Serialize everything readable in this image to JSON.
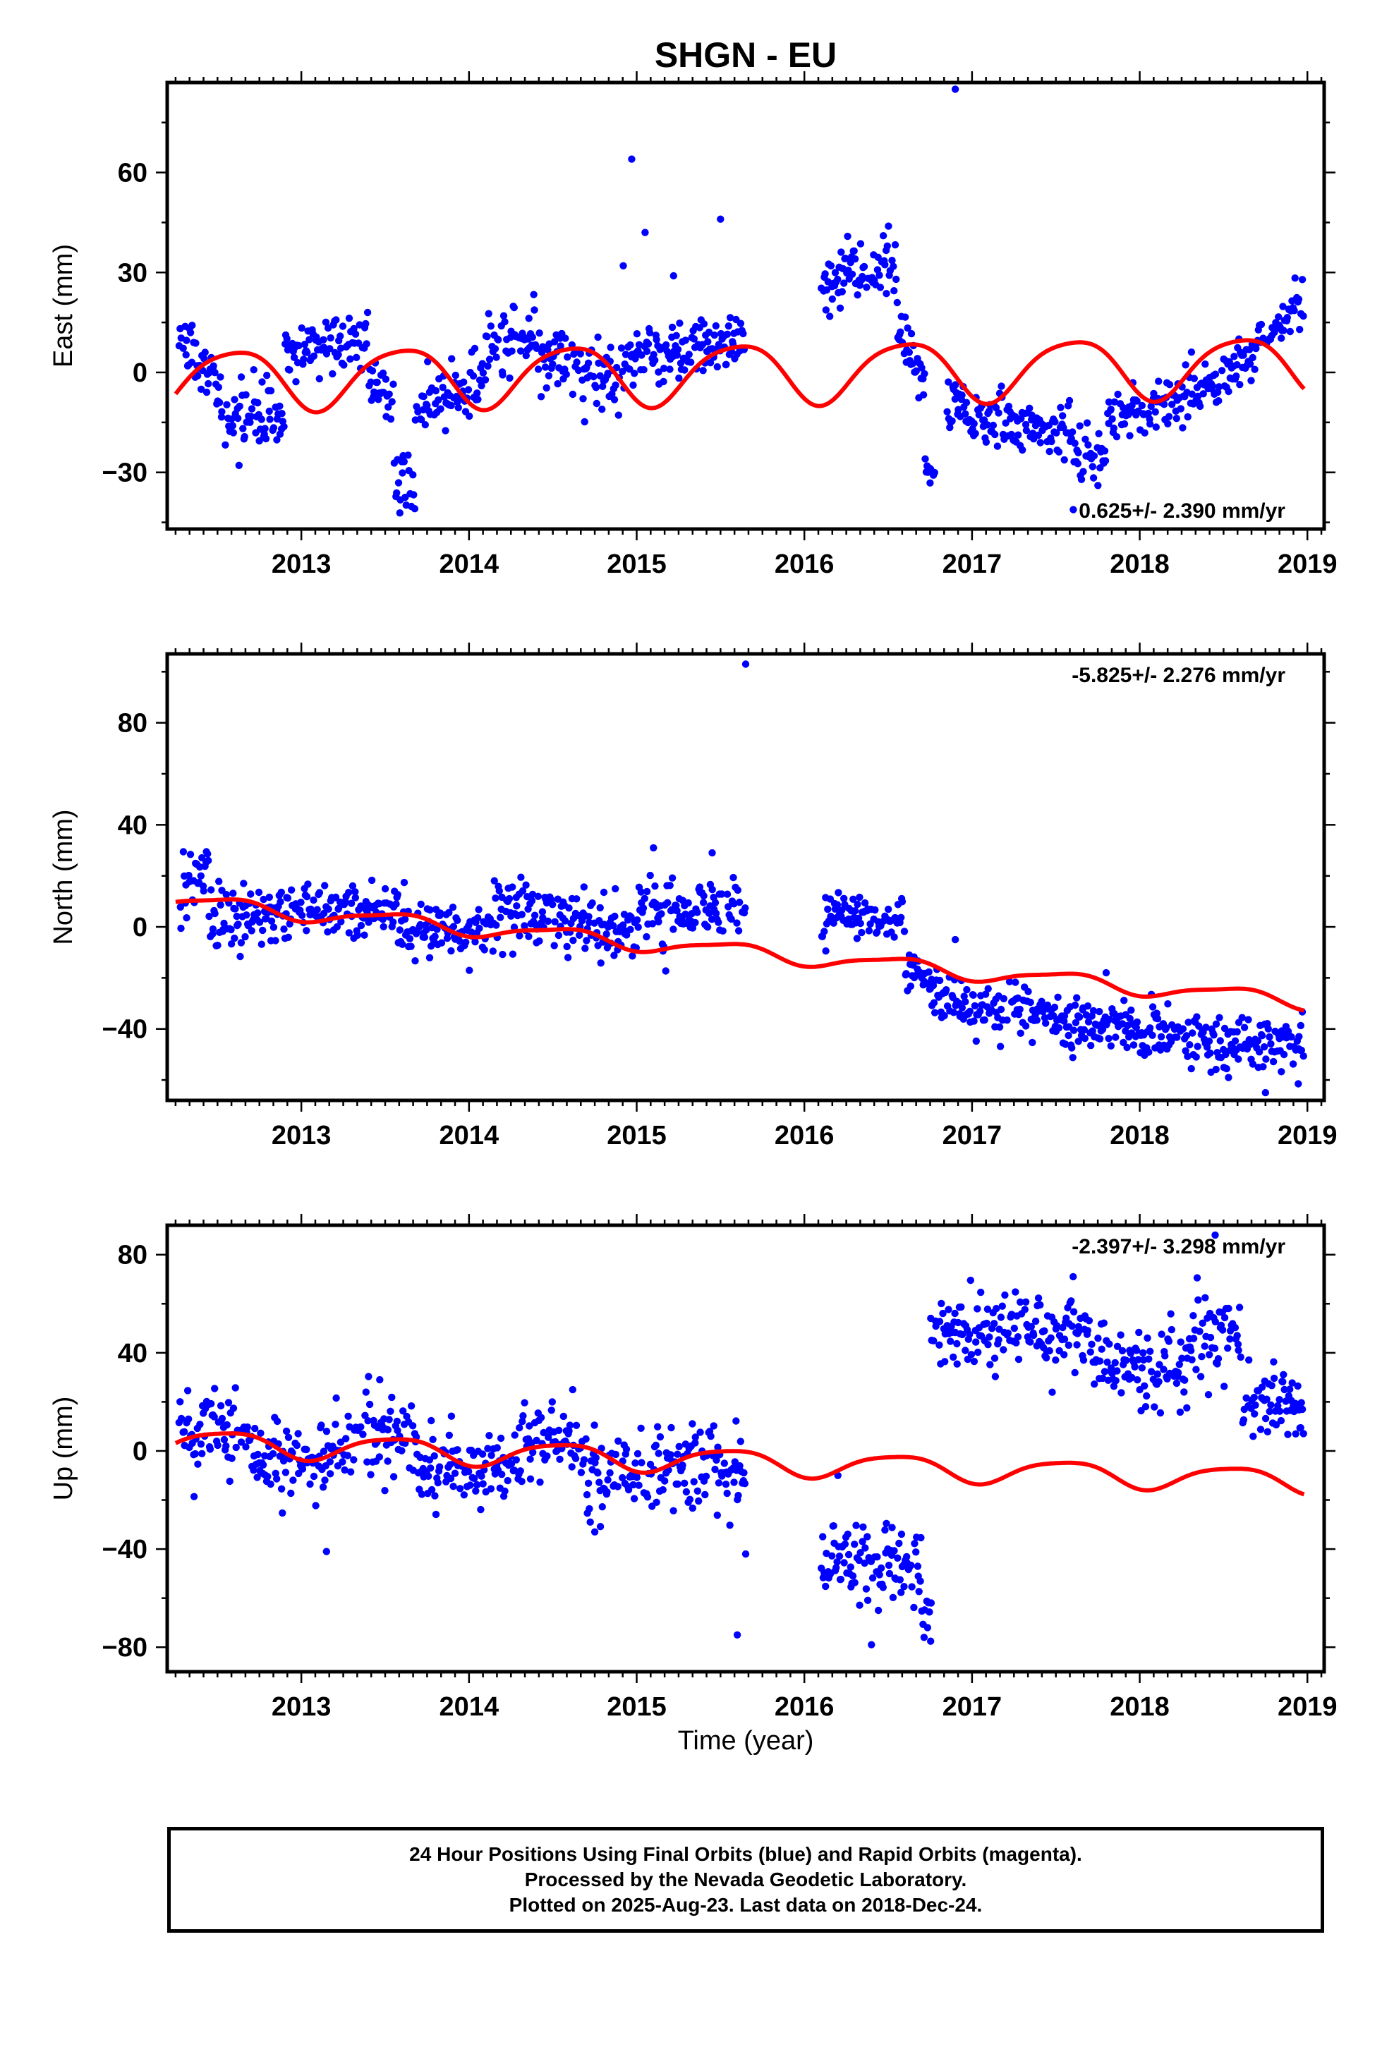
{
  "title": "SHGN - EU",
  "x_axis_label": "Time (year)",
  "colors": {
    "final_orbit": "#0000ff",
    "model_fit": "#ff0000",
    "frame": "#000000"
  },
  "chart_data": [
    {
      "type": "scatter",
      "component": "East",
      "ylabel": "East (mm)",
      "ylim": [
        -47,
        87
      ],
      "yticks": [
        -30,
        0,
        30,
        60
      ],
      "xlim": [
        2012.2,
        2019.1
      ],
      "xticks": [
        2013,
        2014,
        2015,
        2016,
        2017,
        2018,
        2019
      ],
      "rate_annotation": "0.625+/- 2.390 mm/yr",
      "annotation_position": "bottom-right",
      "series": [
        {
          "segments": [
            {
              "start": 2012.27,
              "end": 2012.52,
              "base": 10,
              "trend": -60,
              "noise": 6
            },
            {
              "start": 2012.52,
              "end": 2012.9,
              "base": -15,
              "trend": 5,
              "noise": 6
            },
            {
              "start": 2012.9,
              "end": 2013.4,
              "base": 5,
              "trend": 8,
              "noise": 6
            },
            {
              "start": 2013.4,
              "end": 2013.55,
              "base": 0,
              "trend": -60,
              "noise": 5
            },
            {
              "start": 2013.55,
              "end": 2013.68,
              "base": -30,
              "trend": -50,
              "noise": 6
            },
            {
              "start": 2013.68,
              "end": 2014.1,
              "base": -12,
              "trend": 25,
              "noise": 6
            },
            {
              "start": 2014.1,
              "end": 2014.4,
              "base": 10,
              "trend": 8,
              "noise": 7
            },
            {
              "start": 2014.4,
              "end": 2014.9,
              "base": 5,
              "trend": -15,
              "noise": 7
            },
            {
              "start": 2014.9,
              "end": 2015.65,
              "base": 5,
              "trend": 6,
              "noise": 6
            },
            {
              "start": 2016.1,
              "end": 2016.3,
              "base": 22,
              "trend": 60,
              "noise": 5
            },
            {
              "start": 2016.3,
              "end": 2016.55,
              "base": 30,
              "trend": 10,
              "noise": 6
            },
            {
              "start": 2016.55,
              "end": 2016.72,
              "base": 15,
              "trend": -100,
              "noise": 6
            },
            {
              "start": 2016.72,
              "end": 2016.78,
              "base": -30,
              "trend": 0,
              "noise": 4
            },
            {
              "start": 2016.85,
              "end": 2017.6,
              "base": -10,
              "trend": -12,
              "noise": 6
            },
            {
              "start": 2017.6,
              "end": 2017.8,
              "base": -25,
              "trend": 0,
              "noise": 7
            },
            {
              "start": 2017.8,
              "end": 2018.6,
              "base": -15,
              "trend": 18,
              "noise": 6
            },
            {
              "start": 2018.6,
              "end": 2018.98,
              "base": 3,
              "trend": 50,
              "noise": 5
            }
          ],
          "outliers": [
            [
              2014.92,
              32
            ],
            [
              2014.97,
              64
            ],
            [
              2015.05,
              42
            ],
            [
              2015.22,
              29
            ],
            [
              2015.5,
              46
            ],
            [
              2016.9,
              85
            ]
          ]
        }
      ],
      "model": {
        "offset": 0,
        "trend": 0.625,
        "amplitude": 9,
        "phase": 0.35,
        "semi_amplitude": 1.5,
        "semi_phase": 0.2
      }
    },
    {
      "type": "scatter",
      "component": "North",
      "ylabel": "North (mm)",
      "ylim": [
        -68,
        107
      ],
      "yticks": [
        -40,
        0,
        40,
        80
      ],
      "xlim": [
        2012.2,
        2019.1
      ],
      "xticks": [
        2013,
        2014,
        2015,
        2016,
        2017,
        2018,
        2019
      ],
      "rate_annotation": "-5.825+/- 2.276 mm/yr",
      "annotation_position": "top-right",
      "series": [
        {
          "segments": [
            {
              "start": 2012.27,
              "end": 2012.45,
              "base": 15,
              "trend": 40,
              "noise": 8
            },
            {
              "start": 2012.45,
              "end": 2013.0,
              "base": 5,
              "trend": 0,
              "noise": 8
            },
            {
              "start": 2013.0,
              "end": 2013.6,
              "base": 8,
              "trend": -4,
              "noise": 8
            },
            {
              "start": 2013.6,
              "end": 2014.1,
              "base": 0,
              "trend": -6,
              "noise": 8
            },
            {
              "start": 2014.1,
              "end": 2014.5,
              "base": 5,
              "trend": 0,
              "noise": 8
            },
            {
              "start": 2014.5,
              "end": 2015.0,
              "base": 2,
              "trend": -10,
              "noise": 8
            },
            {
              "start": 2015.0,
              "end": 2015.65,
              "base": 5,
              "trend": 5,
              "noise": 8
            },
            {
              "start": 2016.1,
              "end": 2016.6,
              "base": 5,
              "trend": -5,
              "noise": 6
            },
            {
              "start": 2016.6,
              "end": 2016.8,
              "base": -15,
              "trend": -60,
              "noise": 6
            },
            {
              "start": 2016.8,
              "end": 2017.5,
              "base": -30,
              "trend": -5,
              "noise": 7
            },
            {
              "start": 2017.5,
              "end": 2018.3,
              "base": -38,
              "trend": -4,
              "noise": 7
            },
            {
              "start": 2018.3,
              "end": 2018.98,
              "base": -45,
              "trend": -6,
              "noise": 8
            }
          ],
          "outliers": [
            [
              2015.1,
              31
            ],
            [
              2015.45,
              29
            ],
            [
              2015.65,
              103
            ],
            [
              2016.9,
              -5
            ],
            [
              2017.8,
              -18
            ],
            [
              2018.75,
              -65
            ],
            [
              2018.95,
              -43
            ]
          ]
        }
      ],
      "model": {
        "offset": -9,
        "trend": -5.825,
        "amplitude": 3,
        "phase": 0.3,
        "semi_amplitude": 0.8,
        "semi_phase": 0.1
      }
    },
    {
      "type": "scatter",
      "component": "Up",
      "ylabel": "Up (mm)",
      "ylim": [
        -90,
        92
      ],
      "yticks": [
        -80,
        -40,
        0,
        40,
        80
      ],
      "xlim": [
        2012.2,
        2019.1
      ],
      "xticks": [
        2013,
        2014,
        2015,
        2016,
        2017,
        2018,
        2019
      ],
      "rate_annotation": "-2.397+/- 3.298 mm/yr",
      "annotation_position": "top-right",
      "series": [
        {
          "segments": [
            {
              "start": 2012.27,
              "end": 2012.7,
              "base": 8,
              "trend": 0,
              "noise": 10
            },
            {
              "start": 2012.7,
              "end": 2013.2,
              "base": -5,
              "trend": 0,
              "noise": 10
            },
            {
              "start": 2013.2,
              "end": 2013.7,
              "base": 5,
              "trend": 0,
              "noise": 11
            },
            {
              "start": 2013.7,
              "end": 2014.3,
              "base": -8,
              "trend": 0,
              "noise": 11
            },
            {
              "start": 2014.3,
              "end": 2014.7,
              "base": 5,
              "trend": 0,
              "noise": 10
            },
            {
              "start": 2014.7,
              "end": 2015.65,
              "base": -8,
              "trend": 0,
              "noise": 12
            },
            {
              "start": 2016.1,
              "end": 2016.7,
              "base": -45,
              "trend": 0,
              "noise": 11
            },
            {
              "start": 2016.7,
              "end": 2016.76,
              "base": -70,
              "trend": 0,
              "noise": 8
            },
            {
              "start": 2016.75,
              "end": 2017.7,
              "base": 50,
              "trend": 0,
              "noise": 10
            },
            {
              "start": 2017.7,
              "end": 2018.3,
              "base": 35,
              "trend": 0,
              "noise": 12
            },
            {
              "start": 2018.3,
              "end": 2018.6,
              "base": 45,
              "trend": 0,
              "noise": 10
            },
            {
              "start": 2018.6,
              "end": 2018.98,
              "base": 20,
              "trend": -10,
              "noise": 10
            }
          ],
          "outliers": [
            [
              2013.15,
              -41
            ],
            [
              2014.75,
              -33
            ],
            [
              2015.6,
              -75
            ],
            [
              2015.65,
              -42
            ],
            [
              2016.2,
              -10
            ],
            [
              2016.4,
              -79
            ],
            [
              2018.45,
              88
            ]
          ]
        }
      ],
      "model": {
        "offset": -4,
        "trend": -2.397,
        "amplitude": 5,
        "phase": 0.3,
        "semi_amplitude": 1.0,
        "semi_phase": 0.15
      }
    }
  ],
  "footer": {
    "line1": "24 Hour Positions Using Final Orbits (blue) and Rapid Orbits (magenta).",
    "line2": "Processed by the Nevada Geodetic Laboratory.",
    "line3": "Plotted on 2025-Aug-23. Last data on 2018-Dec-24."
  }
}
